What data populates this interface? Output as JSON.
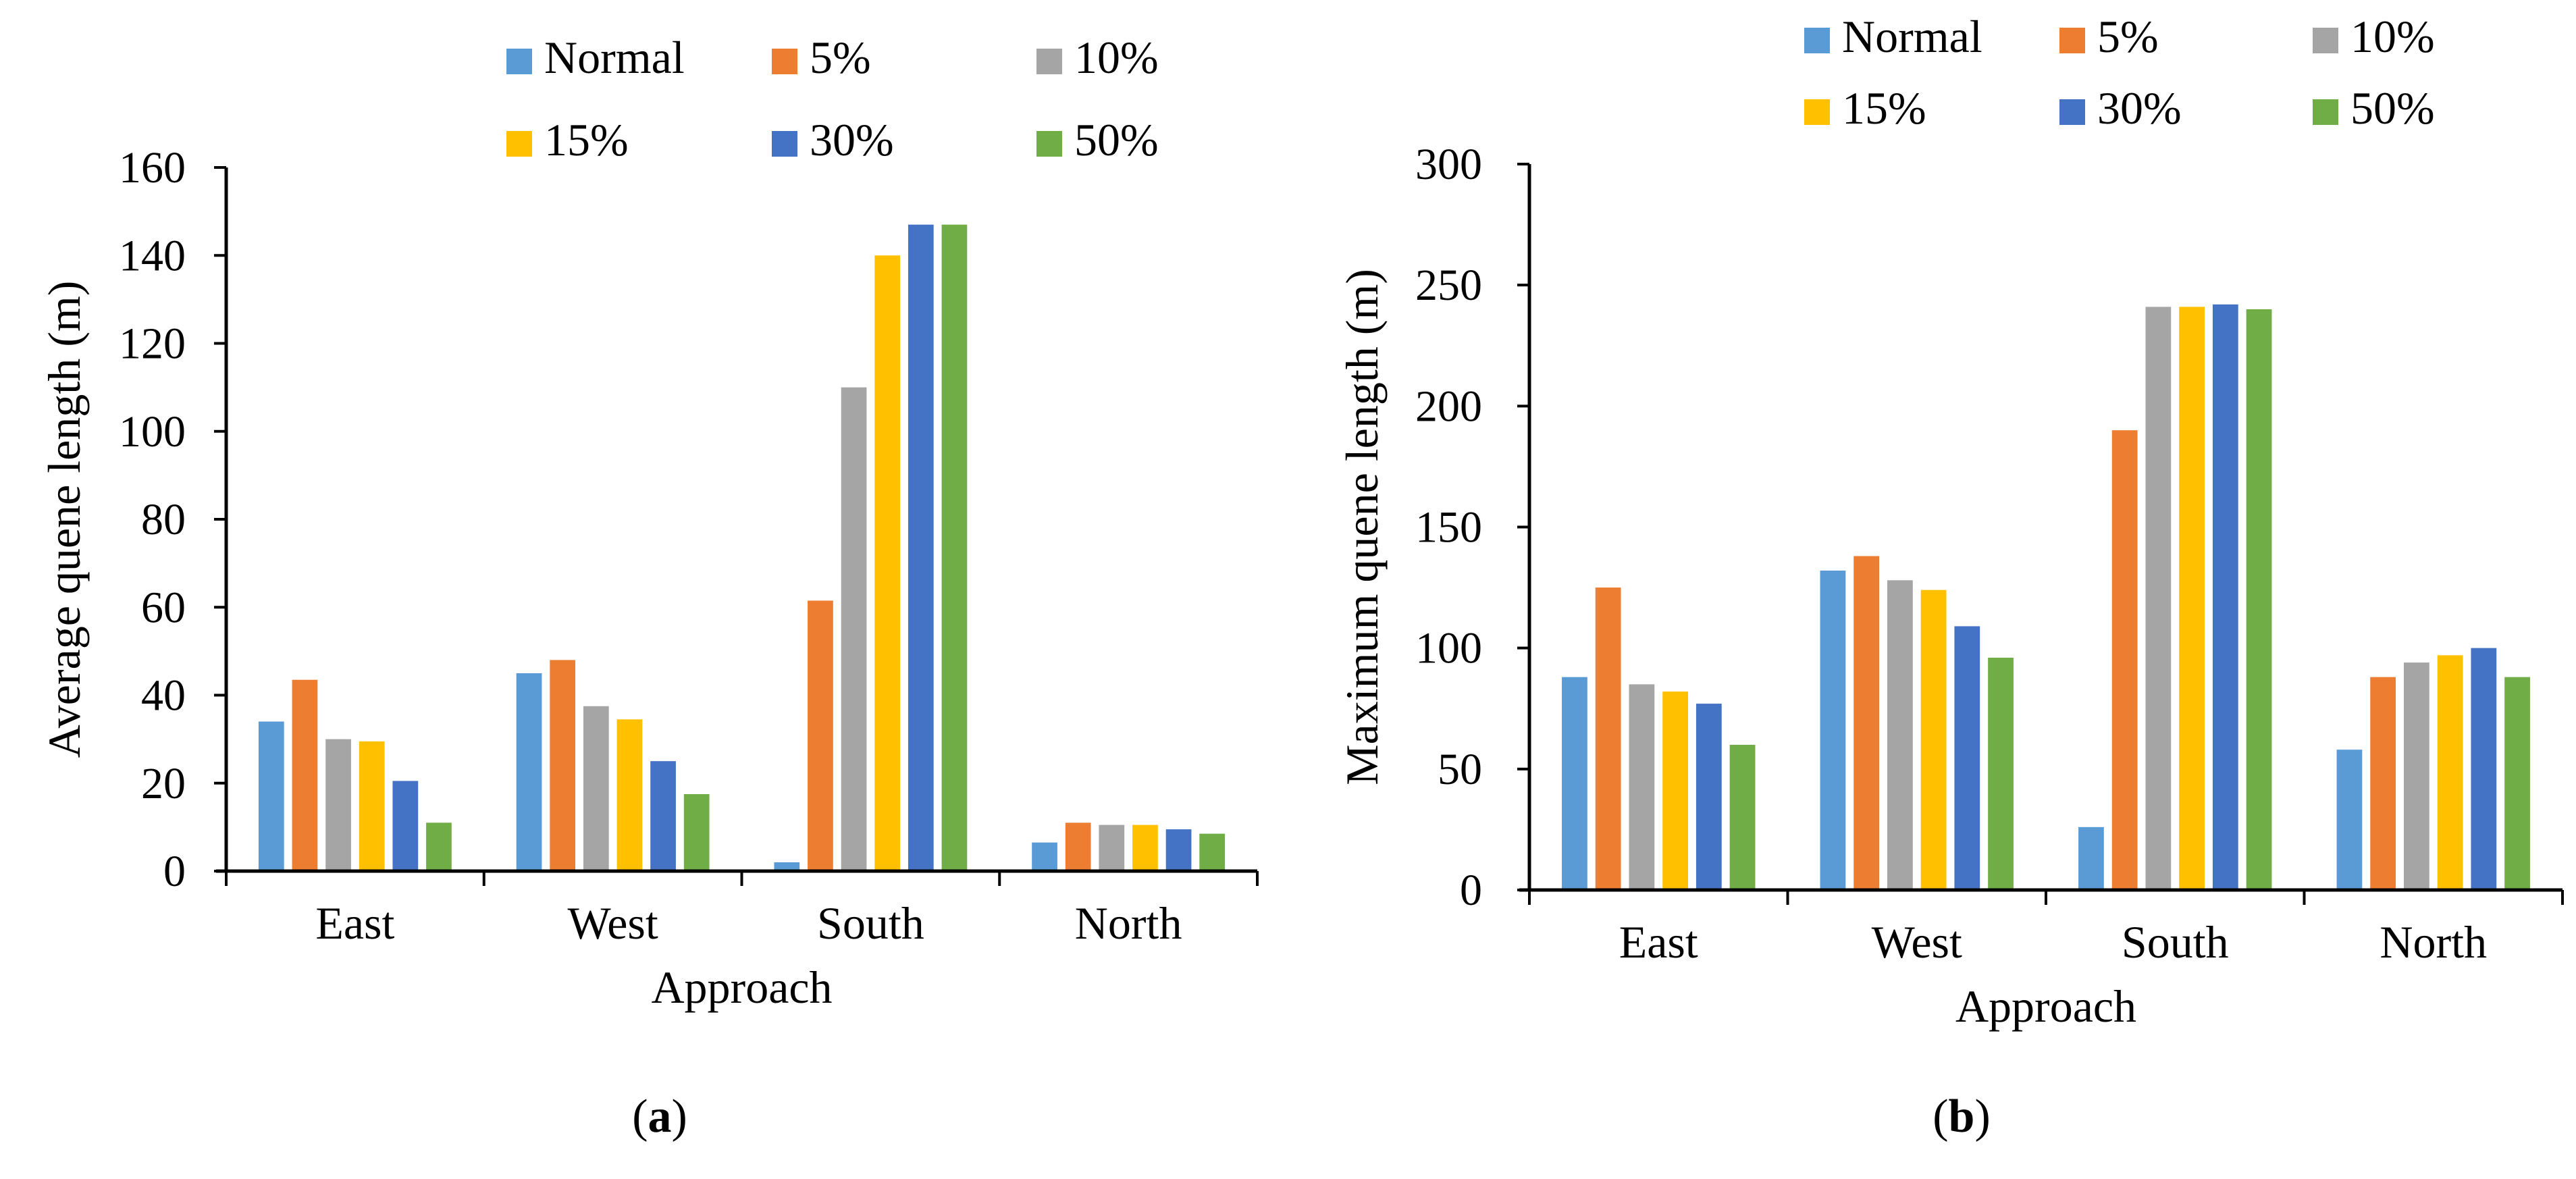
{
  "chart_data": [
    {
      "type": "bar",
      "panel_label": "a",
      "title": "",
      "xlabel": "Approach",
      "ylabel": "Average quene length (m)",
      "ylim": [
        0,
        160
      ],
      "yticks": [
        "0",
        "20",
        "40",
        "60",
        "80",
        "100",
        "120",
        "140",
        "160"
      ],
      "grid": false,
      "legend_position": "top",
      "categories": [
        "East",
        "West",
        "South",
        "North"
      ],
      "series": [
        {
          "name": "Normal",
          "color": "#5B9BD5",
          "values": [
            34,
            45,
            2,
            6.5
          ]
        },
        {
          "name": "5%",
          "color": "#ED7D31",
          "values": [
            43.5,
            48,
            61.5,
            11
          ]
        },
        {
          "name": "10%",
          "color": "#A5A5A5",
          "values": [
            30,
            37.5,
            110,
            10.5
          ]
        },
        {
          "name": "15%",
          "color": "#FFC000",
          "values": [
            29.5,
            34.5,
            140,
            10.5
          ]
        },
        {
          "name": "30%",
          "color": "#4472C4",
          "values": [
            20.5,
            25,
            147,
            9.5
          ]
        },
        {
          "name": "50%",
          "color": "#70AD47",
          "values": [
            11,
            17.5,
            147,
            8.5
          ]
        }
      ]
    },
    {
      "type": "bar",
      "panel_label": "b",
      "title": "",
      "xlabel": "Approach",
      "ylabel": "Maximum quene length (m)",
      "ylim": [
        0,
        300
      ],
      "yticks": [
        "0",
        "50",
        "100",
        "150",
        "200",
        "250",
        "300"
      ],
      "grid": false,
      "legend_position": "top",
      "categories": [
        "East",
        "West",
        "South",
        "North"
      ],
      "series": [
        {
          "name": "Normal",
          "color": "#5B9BD5",
          "values": [
            88,
            132,
            26,
            58
          ]
        },
        {
          "name": "5%",
          "color": "#ED7D31",
          "values": [
            125,
            138,
            190,
            88
          ]
        },
        {
          "name": "10%",
          "color": "#A5A5A5",
          "values": [
            85,
            128,
            241,
            94
          ]
        },
        {
          "name": "15%",
          "color": "#FFC000",
          "values": [
            82,
            124,
            241,
            97
          ]
        },
        {
          "name": "30%",
          "color": "#4472C4",
          "values": [
            77,
            109,
            242,
            100
          ]
        },
        {
          "name": "50%",
          "color": "#70AD47",
          "values": [
            60,
            96,
            240,
            88
          ]
        }
      ]
    }
  ]
}
